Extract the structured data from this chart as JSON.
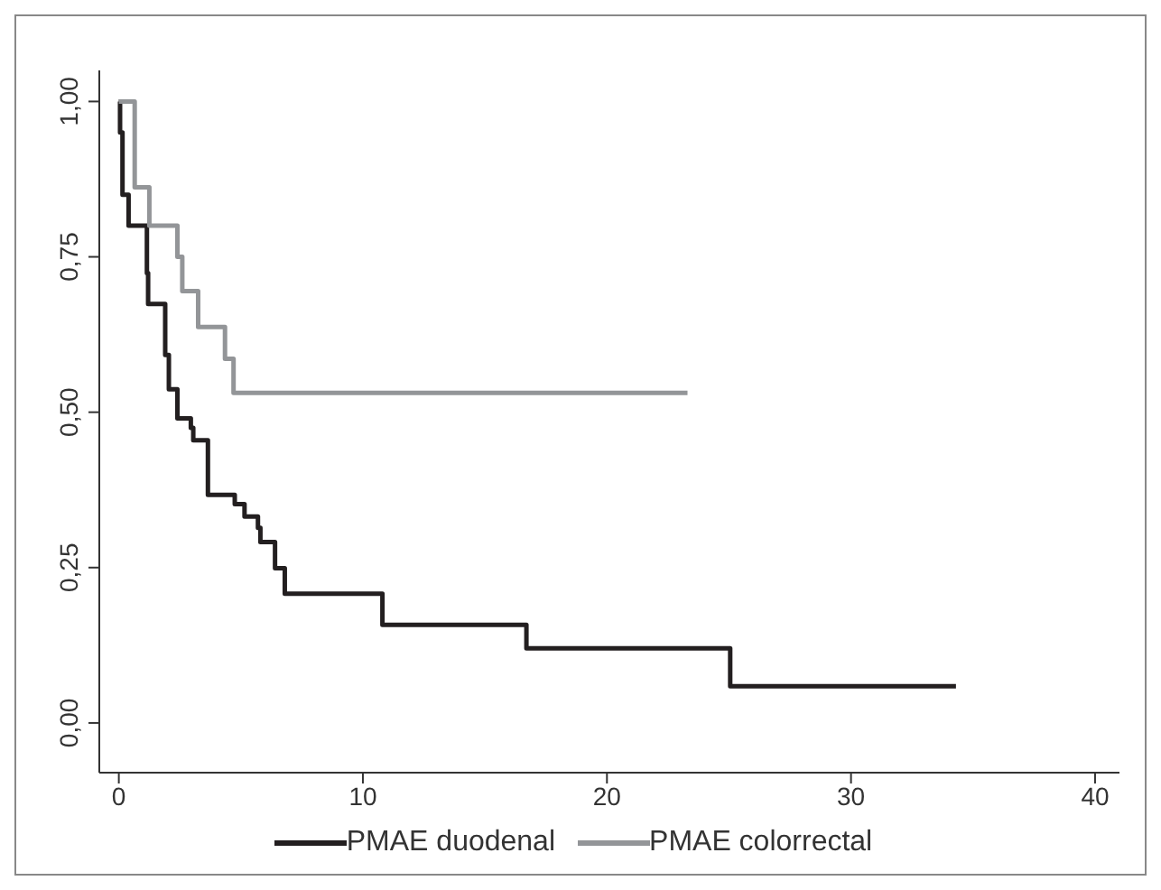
{
  "chart_data": {
    "type": "step",
    "series": [
      {
        "name": "PMAE duodenal",
        "color": "#231f20",
        "x": [
          0,
          0.05,
          0.15,
          0.4,
          1.15,
          1.2,
          1.9,
          2.05,
          2.4,
          2.95,
          3.05,
          3.65,
          4.75,
          5.15,
          5.7,
          5.8,
          6.4,
          6.8,
          10.8,
          16.7,
          25.05,
          34.3
        ],
        "values": [
          1.0,
          0.95,
          0.85,
          0.8,
          0.724,
          0.674,
          0.592,
          0.537,
          0.49,
          0.475,
          0.455,
          0.367,
          0.352,
          0.332,
          0.314,
          0.291,
          0.249,
          0.208,
          0.158,
          0.12,
          0.059,
          0.059
        ]
      },
      {
        "name": "PMAE colorrectal",
        "color": "#939598",
        "x": [
          0,
          0.65,
          1.25,
          2.4,
          2.6,
          3.25,
          4.35,
          4.7,
          23.3
        ],
        "values": [
          1.0,
          0.862,
          0.8,
          0.75,
          0.695,
          0.637,
          0.586,
          0.531,
          0.531
        ]
      }
    ],
    "xlim": [
      -0.8,
      41
    ],
    "xticks": [
      0,
      10,
      20,
      30,
      40
    ],
    "ylim": [
      -0.08,
      1.05
    ],
    "yticks": [
      {
        "value": 0,
        "label": "0,00"
      },
      {
        "value": 0.25,
        "label": "0,25"
      },
      {
        "value": 0.5,
        "label": "0,50"
      },
      {
        "value": 0.75,
        "label": "0,75"
      },
      {
        "value": 1,
        "label": "1,00"
      }
    ],
    "legend": "bottom",
    "grid": false,
    "marker": "none",
    "line_style": "solid"
  }
}
